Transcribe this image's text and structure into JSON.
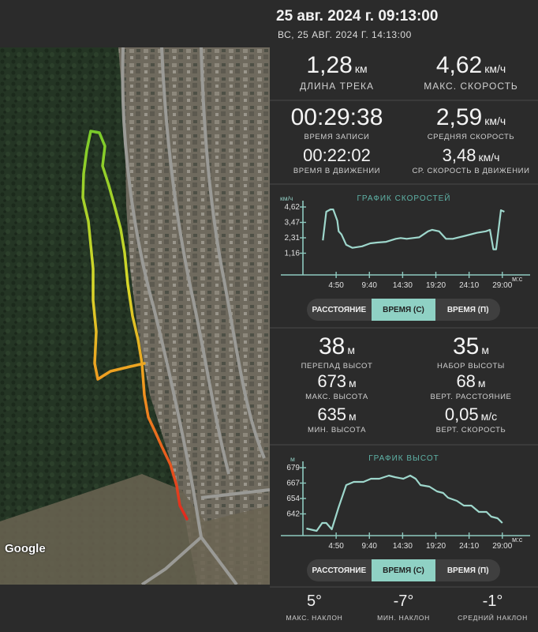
{
  "header": {
    "title": "25 авг. 2024 г. 09:13:00",
    "subtitle": "ВС, 25 АВГ. 2024 Г. 14:13:00"
  },
  "map": {
    "attribution": "Google",
    "colors": {
      "start": "#7acb2a",
      "end": "#e0281e"
    }
  },
  "stats_top": {
    "track_length": {
      "value": "1,28",
      "unit": "км",
      "label": "ДЛИНА ТРЕКА"
    },
    "max_speed": {
      "value": "4,62",
      "unit": "км/ч",
      "label": "МАКС. СКОРОСТЬ"
    },
    "record_time": {
      "value": "00:29:38",
      "label": "ВРЕМЯ ЗАПИСИ"
    },
    "avg_speed": {
      "value": "2,59",
      "unit": "км/ч",
      "label": "СРЕДНЯЯ СКОРОСТЬ"
    },
    "moving_time": {
      "value": "00:22:02",
      "label": "ВРЕМЯ В ДВИЖЕНИИ"
    },
    "moving_avg_speed": {
      "value": "3,48",
      "unit": "км/ч",
      "label": "СР. СКОРОСТЬ В ДВИЖЕНИИ"
    }
  },
  "speed_chart": {
    "title": "ГРАФИК СКОРОСТЕЙ",
    "y_unit": "км/ч",
    "y_ticks": [
      "4,62",
      "3,47",
      "2,31",
      "1,16"
    ],
    "x_ticks": [
      "4:50",
      "9:40",
      "14:30",
      "19:20",
      "24:10",
      "29:00"
    ],
    "x_unit": "м:с",
    "tabs": [
      {
        "label": "РАССТОЯНИЕ",
        "active": false
      },
      {
        "label": "ВРЕМЯ (С)",
        "active": true
      },
      {
        "label": "ВРЕМЯ (П)",
        "active": false
      }
    ]
  },
  "stats_mid": {
    "elevation_diff": {
      "value": "38",
      "unit": "м",
      "label": "ПЕРЕПАД ВЫСОТ"
    },
    "elevation_gain": {
      "value": "35",
      "unit": "м",
      "label": "НАБОР ВЫСОТЫ"
    },
    "max_elevation": {
      "value": "673",
      "unit": "м",
      "label": "МАКС. ВЫСОТА"
    },
    "vert_distance": {
      "value": "68",
      "unit": "м",
      "label": "ВЕРТ. РАССТОЯНИЕ"
    },
    "min_elevation": {
      "value": "635",
      "unit": "м",
      "label": "МИН. ВЫСОТА"
    },
    "vert_speed": {
      "value": "0,05",
      "unit": "м/с",
      "label": "ВЕРТ. СКОРОСТЬ"
    }
  },
  "elevation_chart": {
    "title": "ГРАФИК ВЫСОТ",
    "y_unit": "м",
    "y_ticks": [
      "679",
      "667",
      "654",
      "642"
    ],
    "x_ticks": [
      "4:50",
      "9:40",
      "14:30",
      "19:20",
      "24:10",
      "29:00"
    ],
    "x_unit": "м:с",
    "tabs": [
      {
        "label": "РАССТОЯНИЕ",
        "active": false
      },
      {
        "label": "ВРЕМЯ (С)",
        "active": true
      },
      {
        "label": "ВРЕМЯ (П)",
        "active": false
      }
    ]
  },
  "stats_bottom": {
    "max_slope": {
      "value": "5°",
      "label": "МАКС. НАКЛОН"
    },
    "min_slope": {
      "value": "-7°",
      "label": "МИН. НАКЛОН"
    },
    "avg_slope": {
      "value": "-1°",
      "label": "СРЕДНИЙ НАКЛОН"
    }
  },
  "chart_data": [
    {
      "type": "line",
      "title": "ГРАФИК СКОРОСТЕЙ",
      "ylabel": "км/ч",
      "xlabel": "м:с",
      "ylim": [
        0,
        4.62
      ],
      "xlim": [
        0,
        29.6
      ],
      "x_tick_labels": [
        "4:50",
        "9:40",
        "14:30",
        "19:20",
        "24:10",
        "29:00"
      ],
      "y_tick_labels": [
        "4,62",
        "3,47",
        "2,31",
        "1,16"
      ],
      "x": [
        2.9,
        3.4,
        4.0,
        4.4,
        5.0,
        5.2,
        5.6,
        6.3,
        7.2,
        8.6,
        9.8,
        10.8,
        12.1,
        13.5,
        14.2,
        15.1,
        16.0,
        16.9,
        18.2,
        18.8,
        19.8,
        20.8,
        21.8,
        23.6,
        25.3,
        26.6,
        27.2,
        27.7,
        28.1,
        28.8,
        29.3
      ],
      "series": [
        {
          "values": [
            2.3,
            4.2,
            4.35,
            4.35,
            3.6,
            2.9,
            2.7,
            2.0,
            1.8,
            1.9,
            2.1,
            2.15,
            2.2,
            2.4,
            2.45,
            2.4,
            2.45,
            2.5,
            2.9,
            3.0,
            2.9,
            2.4,
            2.4,
            2.6,
            2.8,
            2.9,
            3.0,
            1.7,
            1.7,
            4.3,
            4.2
          ]
        }
      ]
    },
    {
      "type": "line",
      "title": "ГРАФИК ВЫСОТ",
      "ylabel": "м",
      "xlabel": "м:с",
      "ylim": [
        635,
        679
      ],
      "xlim": [
        0,
        29.6
      ],
      "x_tick_labels": [
        "4:50",
        "9:40",
        "14:30",
        "19:20",
        "24:10",
        "29:00"
      ],
      "y_tick_labels": [
        "679",
        "667",
        "654",
        "642"
      ],
      "x": [
        0.5,
        2.0,
        2.8,
        3.4,
        4.2,
        5.2,
        6.3,
        7.4,
        8.8,
        9.9,
        11.1,
        12.5,
        13.4,
        14.6,
        15.6,
        16.4,
        17.1,
        18.4,
        19.5,
        20.4,
        21.1,
        22.4,
        23.4,
        24.5,
        25.6,
        26.7,
        27.4,
        28.3,
        29.0
      ],
      "series": [
        {
          "values": [
            639.5,
            638.0,
            643.0,
            643.0,
            639.0,
            653.0,
            667.0,
            669.0,
            669.0,
            671.0,
            671.0,
            673.0,
            672.0,
            671.0,
            673.0,
            671.0,
            667.0,
            666.0,
            663.0,
            662.0,
            659.0,
            657.0,
            654.0,
            654.0,
            650.0,
            650.0,
            647.0,
            646.0,
            643.0
          ]
        }
      ]
    }
  ]
}
